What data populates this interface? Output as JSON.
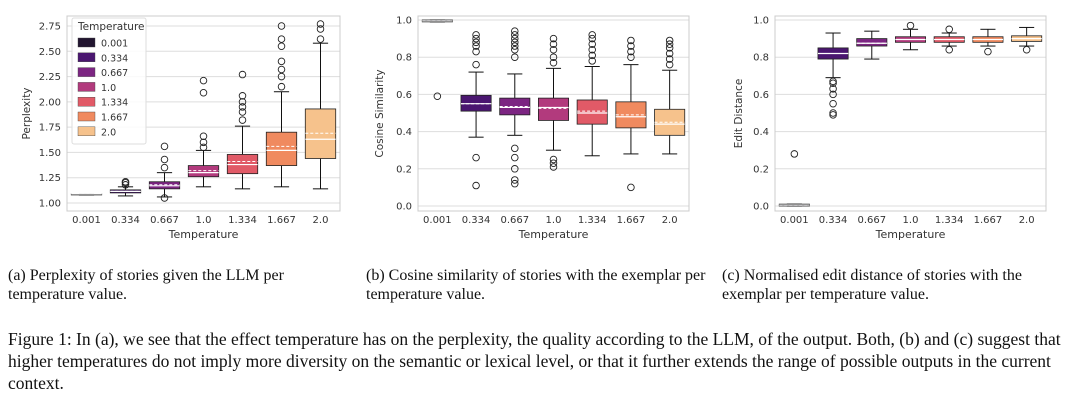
{
  "chart_data": [
    {
      "type": "box",
      "xlabel": "Temperature",
      "ylabel": "Perplexity",
      "categories": [
        "0.001",
        "0.334",
        "0.667",
        "1.0",
        "1.334",
        "1.667",
        "2.0"
      ],
      "yticks": [
        "1.00",
        "1.25",
        "1.50",
        "1.75",
        "2.00",
        "2.25",
        "2.50",
        "2.75"
      ],
      "ylim": [
        0.99,
        2.8
      ],
      "grid": true,
      "legend": {
        "title": "Temperature",
        "placement": "top-left",
        "entries": [
          "0.001",
          "0.334",
          "0.667",
          "1.0",
          "1.334",
          "1.667",
          "2.0"
        ]
      },
      "boxes": [
        {
          "q1": 1.08,
          "median": 1.09,
          "q3": 1.09,
          "mean": 1.09,
          "wlow": 1.08,
          "whigh": 1.09,
          "outliers": []
        },
        {
          "q1": 1.1,
          "median": 1.115,
          "q3": 1.13,
          "mean": 1.115,
          "wlow": 1.07,
          "whigh": 1.16,
          "outliers": [
            1.18,
            1.2,
            1.21
          ]
        },
        {
          "q1": 1.14,
          "median": 1.17,
          "q3": 1.21,
          "mean": 1.18,
          "wlow": 1.06,
          "whigh": 1.3,
          "outliers": [
            1.05,
            1.35,
            1.43,
            1.56
          ]
        },
        {
          "q1": 1.26,
          "median": 1.3,
          "q3": 1.37,
          "mean": 1.32,
          "wlow": 1.16,
          "whigh": 1.52,
          "outliers": [
            1.55,
            1.6,
            1.66,
            2.09,
            2.21
          ]
        },
        {
          "q1": 1.29,
          "median": 1.38,
          "q3": 1.48,
          "mean": 1.41,
          "wlow": 1.14,
          "whigh": 1.76,
          "outliers": [
            1.82,
            1.9,
            1.95,
            2.0,
            2.06,
            2.27
          ]
        },
        {
          "q1": 1.37,
          "median": 1.52,
          "q3": 1.7,
          "mean": 1.56,
          "wlow": 1.16,
          "whigh": 2.1,
          "outliers": [
            2.15,
            2.25,
            2.32,
            2.4,
            2.55,
            2.62,
            2.75
          ]
        },
        {
          "q1": 1.44,
          "median": 1.63,
          "q3": 1.93,
          "mean": 1.69,
          "wlow": 1.14,
          "whigh": 2.58,
          "outliers": [
            2.62,
            2.72,
            2.77
          ]
        }
      ]
    },
    {
      "type": "box",
      "xlabel": "Temperature",
      "ylabel": "Cosine Similarity",
      "categories": [
        "0.001",
        "0.334",
        "0.667",
        "1.0",
        "1.334",
        "1.667",
        "2.0"
      ],
      "yticks": [
        "0.0",
        "0.2",
        "0.4",
        "0.6",
        "0.8",
        "1.0"
      ],
      "ylim": [
        0,
        1.0
      ],
      "grid": true,
      "boxes": [
        {
          "q1": 0.99,
          "median": 0.995,
          "q3": 1.0,
          "mean": 0.995,
          "wlow": 0.99,
          "whigh": 1.0,
          "outliers": [
            0.59
          ]
        },
        {
          "q1": 0.51,
          "median": 0.55,
          "q3": 0.595,
          "mean": 0.55,
          "wlow": 0.37,
          "whigh": 0.72,
          "outliers": [
            0.11,
            0.26,
            0.76,
            0.83,
            0.86,
            0.88,
            0.9,
            0.92
          ]
        },
        {
          "q1": 0.49,
          "median": 0.53,
          "q3": 0.58,
          "mean": 0.535,
          "wlow": 0.38,
          "whigh": 0.71,
          "outliers": [
            0.12,
            0.14,
            0.2,
            0.26,
            0.31,
            0.8,
            0.84,
            0.86,
            0.88,
            0.9,
            0.92,
            0.94
          ]
        },
        {
          "q1": 0.46,
          "median": 0.53,
          "q3": 0.58,
          "mean": 0.525,
          "wlow": 0.3,
          "whigh": 0.74,
          "outliers": [
            0.21,
            0.23,
            0.25,
            0.77,
            0.8,
            0.84,
            0.87,
            0.9
          ]
        },
        {
          "q1": 0.44,
          "median": 0.5,
          "q3": 0.57,
          "mean": 0.51,
          "wlow": 0.27,
          "whigh": 0.75,
          "outliers": [
            0.78,
            0.81,
            0.84,
            0.87,
            0.9,
            0.92
          ]
        },
        {
          "q1": 0.42,
          "median": 0.48,
          "q3": 0.56,
          "mean": 0.49,
          "wlow": 0.28,
          "whigh": 0.76,
          "outliers": [
            0.1,
            0.8,
            0.83,
            0.86,
            0.89
          ]
        },
        {
          "q1": 0.38,
          "median": 0.44,
          "q3": 0.52,
          "mean": 0.45,
          "wlow": 0.28,
          "whigh": 0.73,
          "outliers": [
            0.76,
            0.79,
            0.82,
            0.85,
            0.87,
            0.89
          ]
        }
      ]
    },
    {
      "type": "box",
      "xlabel": "Temperature",
      "ylabel": "Edit Distance",
      "categories": [
        "0.001",
        "0.334",
        "0.667",
        "1.0",
        "1.334",
        "1.667",
        "2.0"
      ],
      "yticks": [
        "0.0",
        "0.2",
        "0.4",
        "0.6",
        "0.8",
        "1.0"
      ],
      "ylim": [
        0,
        1.0
      ],
      "grid": true,
      "boxes": [
        {
          "q1": 0.0,
          "median": 0.005,
          "q3": 0.01,
          "mean": 0.005,
          "wlow": 0.0,
          "whigh": 0.01,
          "outliers": [
            0.28
          ]
        },
        {
          "q1": 0.79,
          "median": 0.82,
          "q3": 0.85,
          "mean": 0.82,
          "wlow": 0.69,
          "whigh": 0.93,
          "outliers": [
            0.49,
            0.5,
            0.55,
            0.6,
            0.63,
            0.66,
            0.67
          ]
        },
        {
          "q1": 0.86,
          "median": 0.875,
          "q3": 0.9,
          "mean": 0.875,
          "wlow": 0.79,
          "whigh": 0.94,
          "outliers": []
        },
        {
          "q1": 0.88,
          "median": 0.895,
          "q3": 0.91,
          "mean": 0.895,
          "wlow": 0.84,
          "whigh": 0.95,
          "outliers": [
            0.97
          ]
        },
        {
          "q1": 0.88,
          "median": 0.895,
          "q3": 0.91,
          "mean": 0.895,
          "wlow": 0.86,
          "whigh": 0.93,
          "outliers": [
            0.84,
            0.95
          ]
        },
        {
          "q1": 0.88,
          "median": 0.895,
          "q3": 0.91,
          "mean": 0.895,
          "wlow": 0.86,
          "whigh": 0.95,
          "outliers": [
            0.83
          ]
        },
        {
          "q1": 0.885,
          "median": 0.9,
          "q3": 0.915,
          "mean": 0.9,
          "wlow": 0.86,
          "whigh": 0.96,
          "outliers": [
            0.84
          ]
        }
      ]
    }
  ],
  "palette": [
    "#221530",
    "#4a1670",
    "#7c2582",
    "#b23a7d",
    "#e15a67",
    "#f08a5f",
    "#f6c28c"
  ],
  "captions": {
    "a": "(a) Perplexity of stories given the LLM per temperature value.",
    "b": "(b) Cosine similarity of stories with the exemplar per temperature value.",
    "c": "(c) Normalised edit distance of stories with the exemplar per temperature value.",
    "figure": "Figure 1: In (a), we see that the effect temperature has on the perplexity, the quality according to the LLM, of the output. Both, (b) and (c) suggest that higher temperatures do not imply more diversity on the semantic or lexical level, or that it further extends the range of possible outputs in the current context."
  }
}
